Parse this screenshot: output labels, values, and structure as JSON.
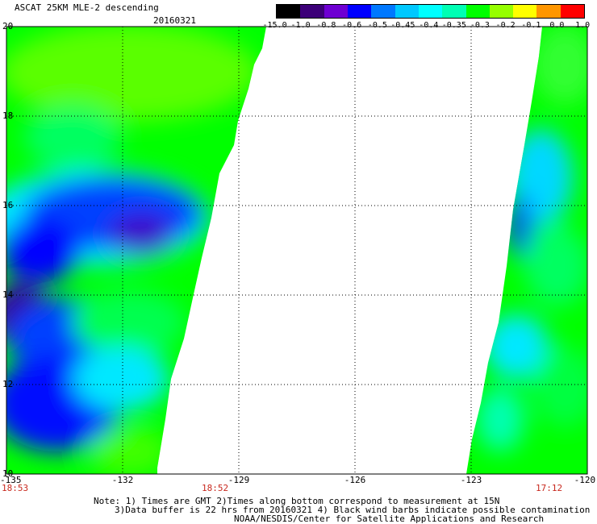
{
  "header": {
    "title": "ASCAT 25KM MLE-2 descending",
    "date": "20160321"
  },
  "colorbar": {
    "labels": [
      "-15.0",
      "-1.0",
      "-0.8",
      "-0.6",
      "-0.5",
      "-0.45",
      "-0.4",
      "-0.35",
      "-0.3",
      "-0.2",
      "-0.1",
      "0.0",
      "1.0"
    ],
    "colors": [
      "#000000",
      "#3c0078",
      "#6e00d2",
      "#0000ff",
      "#0078ff",
      "#00c8ff",
      "#00ffff",
      "#00ffb4",
      "#00ff00",
      "#96ff00",
      "#ffff00",
      "#ff9600",
      "#ff0000"
    ]
  },
  "map": {
    "lon_labels": [
      "-135",
      "-132",
      "-129",
      "-126",
      "-123",
      "-120"
    ],
    "lon_values": [
      -135,
      -132,
      -129,
      -126,
      -123,
      -120
    ],
    "lat_labels": [
      "20",
      "18",
      "16",
      "14",
      "12",
      "10"
    ],
    "lat_values": [
      20,
      18,
      16,
      14,
      12,
      10
    ],
    "pass_times": [
      "18:53",
      "18:52",
      "17:12"
    ]
  },
  "notes": {
    "line1": "Note: 1) Times are GMT 2)Times along bottom correspond to measurement at 15N",
    "line2": "3)Data buffer is 22 hrs from 20160321 4) Black wind barbs indicate possible contamination",
    "line3": "NOAA/NESDIS/Center for Satellite Applications and Research"
  }
}
